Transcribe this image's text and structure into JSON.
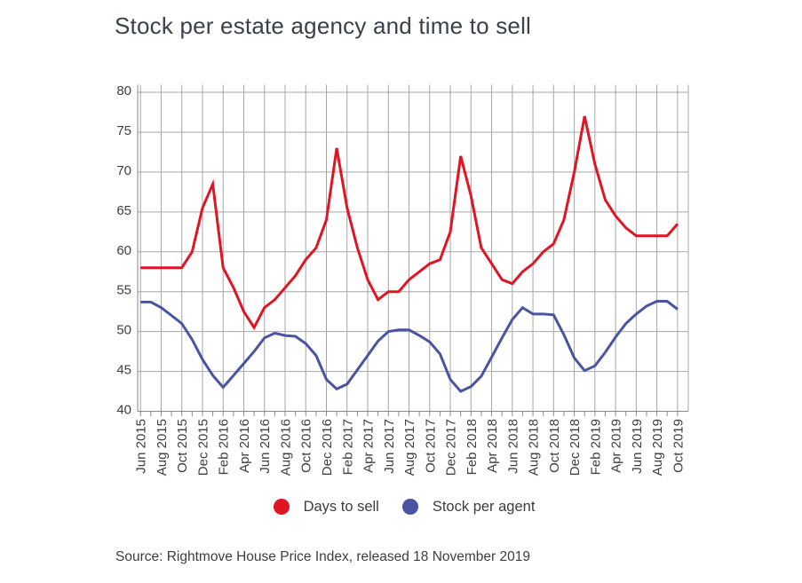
{
  "title": "Stock per estate agency and time to sell",
  "source": "Source: Rightmove House Price Index, released 18 November 2019",
  "chart_data": {
    "type": "line",
    "title": "Stock per estate agency and time to sell",
    "x_interval": "monthly",
    "x_start": "Jun 2015",
    "x_end": "Oct 2019",
    "x_tick_labels": [
      "Jun 2015",
      "Aug 2015",
      "Oct 2015",
      "Dec 2015",
      "Feb 2016",
      "Apr 2016",
      "Jun 2016",
      "Aug 2016",
      "Oct 2016",
      "Dec 2016",
      "Feb 2017",
      "Apr 2017",
      "Jun 2017",
      "Aug 2017",
      "Oct 2017",
      "Dec 2017",
      "Feb 2018",
      "Apr 2018",
      "Jun 2018",
      "Aug 2018",
      "Oct 2018",
      "Dec 2018",
      "Feb 2019",
      "Apr 2019",
      "Jun 2019",
      "Aug 2019",
      "Oct 2019"
    ],
    "ylim": [
      40,
      80
    ],
    "yticks": [
      "40",
      "45",
      "50",
      "55",
      "60",
      "65",
      "70",
      "75",
      "80"
    ],
    "grid": true,
    "legend_position": "bottom",
    "axis_color": "#8a8a8a",
    "grid_color": "#a6a6a6",
    "tick_label_color": "#3e3e3e",
    "series": [
      {
        "name": "Days to sell",
        "color": "#e11423",
        "values": [
          58,
          58,
          58,
          58,
          58,
          60,
          65.5,
          68.5,
          58,
          55.5,
          52.5,
          50.5,
          53,
          54,
          55.5,
          57,
          59,
          60.5,
          64,
          73,
          65.5,
          60.5,
          56.5,
          54,
          55,
          55,
          56.5,
          57.5,
          58.5,
          59,
          62.5,
          72,
          67,
          60.5,
          58.5,
          56.5,
          56,
          57.5,
          58.5,
          60,
          61,
          64,
          70,
          77,
          71,
          66.5,
          64.5,
          63,
          62,
          62,
          62,
          62,
          63.5
        ]
      },
      {
        "name": "Stock per agent",
        "color": "#4a54a3",
        "values": [
          53.7,
          53.7,
          53,
          52,
          51,
          49,
          46.5,
          44.5,
          43,
          44.5,
          46,
          47.5,
          49.2,
          49.8,
          49.5,
          49.4,
          48.5,
          47,
          44,
          42.8,
          43.4,
          45.2,
          47,
          48.8,
          50,
          50.2,
          50.2,
          49.5,
          48.7,
          47.2,
          44,
          42.5,
          43.1,
          44.4,
          46.8,
          49.2,
          51.5,
          53,
          52.2,
          52.2,
          52.1,
          49.6,
          46.7,
          45.1,
          45.7,
          47.4,
          49.3,
          51,
          52.2,
          53.2,
          53.8,
          53.8,
          52.8
        ]
      }
    ]
  }
}
